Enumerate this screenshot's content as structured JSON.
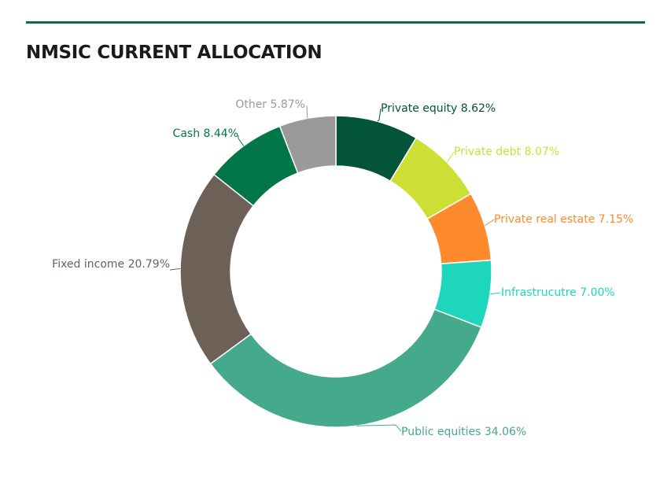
{
  "chart_data": {
    "type": "pie",
    "title": "NMSIC CURRENT ALLOCATION",
    "donut": true,
    "slices": [
      {
        "label": "Private equity",
        "value": 8.62,
        "display": "Private equity 8.62%",
        "color": "#03543b"
      },
      {
        "label": "Private debt",
        "value": 8.07,
        "display": "Private debt 8.07%",
        "color": "#cddf35"
      },
      {
        "label": "Private real estate",
        "value": 7.15,
        "display": "Private real estate 7.15%",
        "color": "#fd8a2c"
      },
      {
        "label": "Infrastrucutre",
        "value": 7.0,
        "display": "Infrastrucutre 7.00%",
        "color": "#1ed6bc"
      },
      {
        "label": "Public equities",
        "value": 34.06,
        "display": "Public equities 34.06%",
        "color": "#45a98c"
      },
      {
        "label": "Fixed income",
        "value": 20.79,
        "display": "Fixed income 20.79%",
        "color": "#6c6057"
      },
      {
        "label": "Cash",
        "value": 8.44,
        "display": "Cash 8.44%",
        "color": "#037649"
      },
      {
        "label": "Other",
        "value": 5.87,
        "display": "Other 5.87%",
        "color": "#9a9a9a"
      }
    ]
  }
}
